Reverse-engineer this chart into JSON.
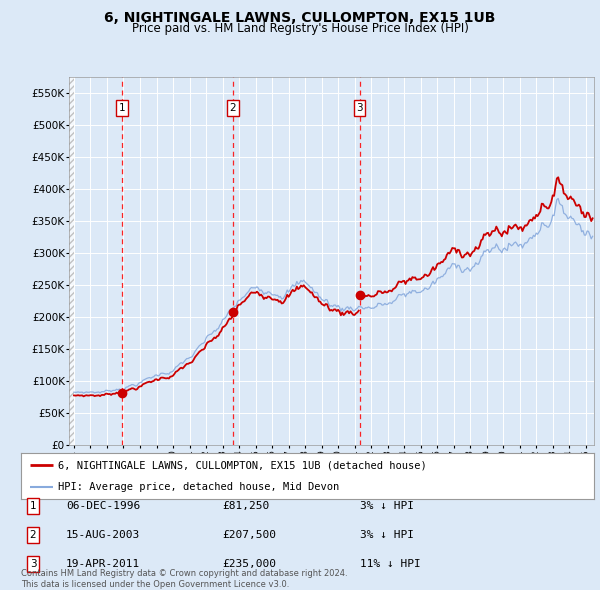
{
  "title": "6, NIGHTINGALE LAWNS, CULLOMPTON, EX15 1UB",
  "subtitle": "Price paid vs. HM Land Registry's House Price Index (HPI)",
  "background_color": "#dce9f7",
  "ylim": [
    0,
    575000
  ],
  "yticks": [
    0,
    50000,
    100000,
    150000,
    200000,
    250000,
    300000,
    350000,
    400000,
    450000,
    500000,
    550000
  ],
  "ytick_labels": [
    "£0",
    "£50K",
    "£100K",
    "£150K",
    "£200K",
    "£250K",
    "£300K",
    "£350K",
    "£400K",
    "£450K",
    "£500K",
    "£550K"
  ],
  "xlim_start": 1993.7,
  "xlim_end": 2025.5,
  "transactions": [
    {
      "date": 1996.92,
      "price": 81250,
      "label": "1"
    },
    {
      "date": 2003.62,
      "price": 207500,
      "label": "2"
    },
    {
      "date": 2011.3,
      "price": 235000,
      "label": "3"
    }
  ],
  "legend_line1": "6, NIGHTINGALE LAWNS, CULLOMPTON, EX15 1UB (detached house)",
  "legend_line2": "HPI: Average price, detached house, Mid Devon",
  "table_rows": [
    {
      "num": "1",
      "date": "06-DEC-1996",
      "price": "£81,250",
      "hpi": "3% ↓ HPI"
    },
    {
      "num": "2",
      "date": "15-AUG-2003",
      "price": "£207,500",
      "hpi": "3% ↓ HPI"
    },
    {
      "num": "3",
      "date": "19-APR-2011",
      "price": "£235,000",
      "hpi": "11% ↓ HPI"
    }
  ],
  "footnote": "Contains HM Land Registry data © Crown copyright and database right 2024.\nThis data is licensed under the Open Government Licence v3.0."
}
